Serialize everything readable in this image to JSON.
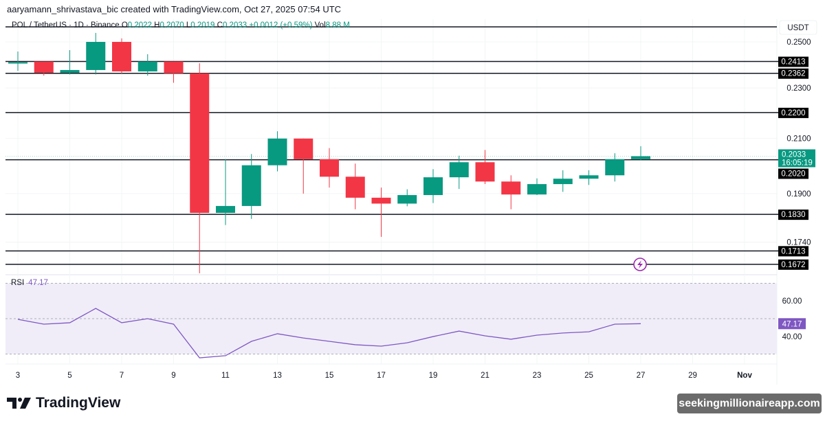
{
  "header": {
    "caption": "aaryamann_shrivastava_bic created with TradingView.com, Oct 27, 2025 07:54 UTC"
  },
  "legend": {
    "symbol": "POL / TetherUS · 1D · Binance",
    "o_label": "O",
    "o": "0.2022",
    "h_label": "H",
    "h": "0.2070",
    "l_label": "L",
    "l": "0.2019",
    "c_label": "C",
    "c": "0.2033",
    "change": "+0.0012 (+0.59%)",
    "vol_label": "Vol",
    "vol": "8.88 M"
  },
  "colors": {
    "up": "#089981",
    "down": "#f23645",
    "rsi": "#7e57c2",
    "rsi_band": "#f0edf9"
  },
  "chart_data": [
    {
      "type": "candlestick",
      "title": "POL / TetherUS · 1D · Binance",
      "ylabel": "USDT",
      "scale": "log",
      "ylim": [
        0.1645,
        0.26
      ],
      "x_ticks": [
        "3",
        "5",
        "7",
        "9",
        "11",
        "13",
        "15",
        "17",
        "19",
        "21",
        "23",
        "25",
        "27",
        "29",
        "Nov"
      ],
      "y_ticks": [
        "0.2500",
        "0.2300",
        "0.2100",
        "0.1900",
        "0.1740"
      ],
      "first_day": 3,
      "candles": [
        {
          "o": 0.2409,
          "h": 0.2457,
          "l": 0.2372,
          "c": 0.241
        },
        {
          "o": 0.2413,
          "h": 0.2413,
          "l": 0.2352,
          "c": 0.2364
        },
        {
          "o": 0.2364,
          "h": 0.2463,
          "l": 0.2357,
          "c": 0.2376
        },
        {
          "o": 0.2376,
          "h": 0.2541,
          "l": 0.2357,
          "c": 0.25
        },
        {
          "o": 0.25,
          "h": 0.2516,
          "l": 0.2361,
          "c": 0.237
        },
        {
          "o": 0.237,
          "h": 0.2445,
          "l": 0.2352,
          "c": 0.2413
        },
        {
          "o": 0.2413,
          "h": 0.2413,
          "l": 0.2322,
          "c": 0.2362
        },
        {
          "o": 0.2362,
          "h": 0.2405,
          "l": 0.1645,
          "c": 0.1835
        },
        {
          "o": 0.1835,
          "h": 0.2022,
          "l": 0.1795,
          "c": 0.1858
        },
        {
          "o": 0.1858,
          "h": 0.2041,
          "l": 0.1815,
          "c": 0.2
        },
        {
          "o": 0.2,
          "h": 0.2127,
          "l": 0.1978,
          "c": 0.2099
        },
        {
          "o": 0.2099,
          "h": 0.2099,
          "l": 0.19,
          "c": 0.2022
        },
        {
          "o": 0.2022,
          "h": 0.2063,
          "l": 0.1921,
          "c": 0.1959
        },
        {
          "o": 0.1959,
          "h": 0.2006,
          "l": 0.1847,
          "c": 0.1886
        },
        {
          "o": 0.1886,
          "h": 0.1921,
          "l": 0.1757,
          "c": 0.1866
        },
        {
          "o": 0.1866,
          "h": 0.1915,
          "l": 0.1857,
          "c": 0.1895
        },
        {
          "o": 0.1895,
          "h": 0.1986,
          "l": 0.1868,
          "c": 0.1957
        },
        {
          "o": 0.1957,
          "h": 0.2035,
          "l": 0.1916,
          "c": 0.2011
        },
        {
          "o": 0.2011,
          "h": 0.2056,
          "l": 0.1933,
          "c": 0.1942
        },
        {
          "o": 0.1942,
          "h": 0.1964,
          "l": 0.1847,
          "c": 0.1897
        },
        {
          "o": 0.1897,
          "h": 0.1953,
          "l": 0.1895,
          "c": 0.1933
        },
        {
          "o": 0.1933,
          "h": 0.1982,
          "l": 0.1906,
          "c": 0.1952
        },
        {
          "o": 0.1952,
          "h": 0.1982,
          "l": 0.193,
          "c": 0.1964
        },
        {
          "o": 0.1964,
          "h": 0.2044,
          "l": 0.1942,
          "c": 0.2022
        },
        {
          "o": 0.2022,
          "h": 0.207,
          "l": 0.2019,
          "c": 0.2033
        }
      ],
      "levels": [
        "0.2413",
        "0.2362",
        "0.2200",
        "0.2020",
        "0.1830",
        "0.1713",
        "0.1672"
      ],
      "top_line": 0.2569,
      "last_price": "0.2033",
      "countdown": "16:05:19"
    },
    {
      "type": "line",
      "title": "RSI",
      "current_label": "47.17",
      "ylim": [
        30,
        70
      ],
      "y_ticks": [
        "60.00",
        "40.00"
      ],
      "bands": [
        70,
        50,
        30
      ],
      "values": [
        49.6,
        46.9,
        47.7,
        55.8,
        47.7,
        50.0,
        46.9,
        27.9,
        29.1,
        37.2,
        41.5,
        39.1,
        37.2,
        35.3,
        34.5,
        36.4,
        39.9,
        43.0,
        40.3,
        38.4,
        40.7,
        41.9,
        42.6,
        46.9,
        47.17
      ]
    }
  ],
  "footer": {
    "brand": "TradingView",
    "watermark": "seekingmillionaireapp.com"
  }
}
